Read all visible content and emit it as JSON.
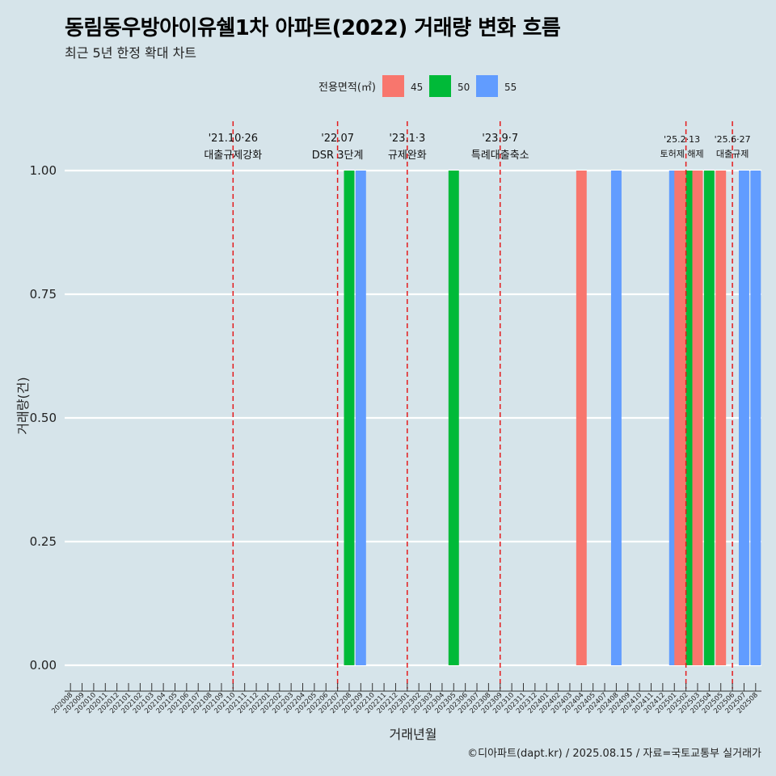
{
  "header": {
    "title": "동림동우방아이유쉘1차 아파트(2022) 거래량 변화 흐름",
    "subtitle": "최근 5년 한정 확대 차트"
  },
  "caption": "©디아파트(dapt.kr) / 2025.08.15 / 자료=국토교통부 실거래가",
  "chart_data": {
    "type": "bar",
    "title": "동림동우방아이유쉘1차 아파트(2022) 거래량 변화 흐름",
    "subtitle": "최근 5년 한정 확대 차트",
    "xlabel": "거래년월",
    "ylabel": "거래량(건)",
    "ylim": [
      0,
      1
    ],
    "yticks": [
      "0.00",
      "0.25",
      "0.50",
      "0.75",
      "1.00"
    ],
    "grid": true,
    "legend": {
      "title": "전용면적(㎡)",
      "position": "top",
      "entries": [
        {
          "label": "45",
          "color": "#F8766D"
        },
        {
          "label": "50",
          "color": "#00BA38"
        },
        {
          "label": "55",
          "color": "#619CFF"
        }
      ]
    },
    "categories": [
      "202008",
      "202009",
      "202010",
      "202011",
      "202012",
      "202101",
      "202102",
      "202103",
      "202104",
      "202105",
      "202106",
      "202107",
      "202108",
      "202109",
      "202110",
      "202111",
      "202112",
      "202201",
      "202202",
      "202203",
      "202204",
      "202205",
      "202206",
      "202207",
      "202208",
      "202209",
      "202210",
      "202211",
      "202212",
      "202301",
      "202302",
      "202303",
      "202304",
      "202305",
      "202306",
      "202307",
      "202308",
      "202309",
      "202310",
      "202311",
      "202312",
      "202401",
      "202402",
      "202403",
      "202404",
      "202405",
      "202407",
      "202408",
      "202409",
      "202410",
      "202411",
      "202412",
      "202501",
      "202502",
      "202503",
      "202504",
      "202505",
      "202506",
      "202507",
      "202508"
    ],
    "series": [
      {
        "name": "45",
        "color": "#F8766D",
        "points": [
          {
            "x": "202404",
            "y": 1
          },
          {
            "x": "202502",
            "y": 1
          },
          {
            "x": "202503",
            "y": 1
          },
          {
            "x": "202505",
            "y": 1
          }
        ]
      },
      {
        "name": "50",
        "color": "#00BA38",
        "points": [
          {
            "x": "202208",
            "y": 1
          },
          {
            "x": "202305",
            "y": 1
          },
          {
            "x": "202502",
            "y": 1
          },
          {
            "x": "202504",
            "y": 1
          }
        ]
      },
      {
        "name": "55",
        "color": "#619CFF",
        "points": [
          {
            "x": "202209",
            "y": 1
          },
          {
            "x": "202408",
            "y": 1
          },
          {
            "x": "202501",
            "y": 1
          },
          {
            "x": "202507",
            "y": 1
          },
          {
            "x": "202508",
            "y": 1
          }
        ]
      }
    ],
    "annotations": [
      {
        "date": "'21.10·26",
        "label": "대출규제강화",
        "x": "202110"
      },
      {
        "date": "'22.07",
        "label": "DSR 3단계",
        "x": "202207"
      },
      {
        "date": "'23.1·3",
        "label": "규제완화",
        "x": "202301"
      },
      {
        "date": "'23.9·7",
        "label": "특례대출축소",
        "x": "202309"
      },
      {
        "date": "'25.2·13",
        "label": "토허제 해제",
        "x": "202502"
      },
      {
        "date": "'25.6·27",
        "label": "대출규제",
        "x": "202506"
      }
    ]
  }
}
